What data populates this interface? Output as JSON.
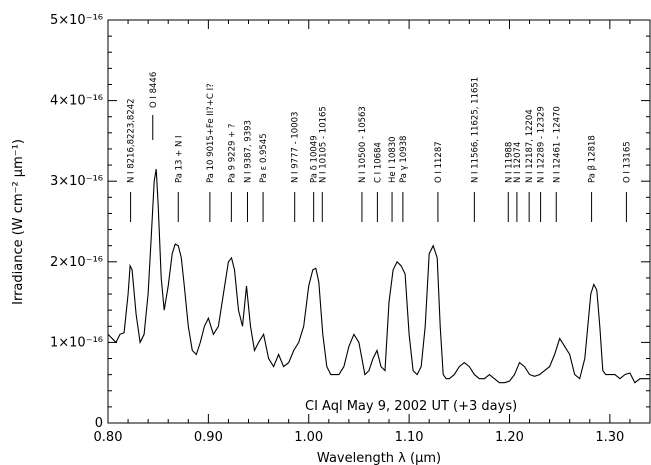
{
  "chart_data": {
    "type": "line",
    "xlabel": "Wavelength λ (μm)",
    "ylabel": "Irradiance (W cm⁻² μm⁻¹)",
    "xlim": [
      0.8,
      1.34
    ],
    "ylim": [
      0,
      5e-16
    ],
    "x_ticks": [
      "0.80",
      "0.90",
      "1.00",
      "1.10",
      "1.20",
      "1.30"
    ],
    "x_tick_values": [
      0.8,
      0.9,
      1.0,
      1.1,
      1.2,
      1.3
    ],
    "y_ticks": [
      "0",
      "1×10⁻¹⁶",
      "2×10⁻¹⁶",
      "3×10⁻¹⁶",
      "4×10⁻¹⁶",
      "5×10⁻¹⁶"
    ],
    "y_tick_values": [
      0,
      1e-16,
      2e-16,
      3e-16,
      4e-16,
      5e-16
    ],
    "annotation": "CI Aql May 9, 2002 UT (+3 days)",
    "grid": false,
    "line_ids": [
      {
        "x": 0.8225,
        "label": "N I 8216,8223,8242"
      },
      {
        "x": 0.8446,
        "label": "O I 8446"
      },
      {
        "x": 0.87,
        "label": "Pa 13 + N I"
      },
      {
        "x": 0.9015,
        "label": "Pa 10 9015+Fe II?+C I?"
      },
      {
        "x": 0.9229,
        "label": "Pa 9 9229 + ?"
      },
      {
        "x": 0.939,
        "label": "N I 9387, 9393"
      },
      {
        "x": 0.9545,
        "label": "Pa ε 0.9545"
      },
      {
        "x": 0.986,
        "label": "N I 9777 - 10003"
      },
      {
        "x": 1.0049,
        "label": "Pa δ 10049"
      },
      {
        "x": 1.0135,
        "label": "N I 10105 - 10165"
      },
      {
        "x": 1.053,
        "label": "N I 10500 - 10563"
      },
      {
        "x": 1.0684,
        "label": "C I 10684"
      },
      {
        "x": 1.083,
        "label": "He I 10830"
      },
      {
        "x": 1.0938,
        "label": "Pa γ 10938"
      },
      {
        "x": 1.1287,
        "label": "O I 11287"
      },
      {
        "x": 1.165,
        "label": "N I 11566, 11625, 11651"
      },
      {
        "x": 1.1988,
        "label": "N I 11988"
      },
      {
        "x": 1.2074,
        "label": "N I 12074"
      },
      {
        "x": 1.2196,
        "label": "N I 12187, 12204"
      },
      {
        "x": 1.231,
        "label": "N I 12289 - 12329"
      },
      {
        "x": 1.2466,
        "label": "N I 12461 - 12470"
      },
      {
        "x": 1.2818,
        "label": "Pa β 12818"
      },
      {
        "x": 1.3165,
        "label": "O I 13165"
      }
    ],
    "series": [
      {
        "x": [
          0.8,
          0.804,
          0.808,
          0.812,
          0.816,
          0.82,
          0.822,
          0.824,
          0.828,
          0.832,
          0.836,
          0.84,
          0.843,
          0.846,
          0.848,
          0.85,
          0.853,
          0.856,
          0.86,
          0.864,
          0.867,
          0.87,
          0.873,
          0.876,
          0.88,
          0.884,
          0.888,
          0.892,
          0.896,
          0.9,
          0.905,
          0.91,
          0.915,
          0.92,
          0.923,
          0.926,
          0.93,
          0.934,
          0.938,
          0.942,
          0.946,
          0.95,
          0.955,
          0.96,
          0.965,
          0.97,
          0.975,
          0.98,
          0.985,
          0.99,
          0.995,
          1.0,
          1.004,
          1.007,
          1.01,
          1.014,
          1.018,
          1.022,
          1.026,
          1.03,
          1.035,
          1.04,
          1.045,
          1.05,
          1.053,
          1.056,
          1.06,
          1.064,
          1.068,
          1.072,
          1.076,
          1.08,
          1.084,
          1.088,
          1.092,
          1.096,
          1.1,
          1.104,
          1.108,
          1.112,
          1.116,
          1.12,
          1.124,
          1.128,
          1.131,
          1.134,
          1.137,
          1.14,
          1.145,
          1.15,
          1.155,
          1.16,
          1.165,
          1.17,
          1.175,
          1.18,
          1.185,
          1.19,
          1.195,
          1.2,
          1.205,
          1.21,
          1.215,
          1.22,
          1.225,
          1.23,
          1.235,
          1.24,
          1.245,
          1.25,
          1.255,
          1.26,
          1.265,
          1.27,
          1.275,
          1.278,
          1.281,
          1.284,
          1.287,
          1.29,
          1.293,
          1.296,
          1.3,
          1.305,
          1.31,
          1.315,
          1.32,
          1.325,
          1.33,
          1.335,
          1.34
        ],
        "values": [
          1.1e-16,
          1.05e-16,
          1e-16,
          1.1e-16,
          1.12e-16,
          1.6e-16,
          1.95e-16,
          1.9e-16,
          1.35e-16,
          1e-16,
          1.1e-16,
          1.6e-16,
          2.3e-16,
          3e-16,
          3.15e-16,
          2.7e-16,
          1.8e-16,
          1.4e-16,
          1.7e-16,
          2.1e-16,
          2.22e-16,
          2.2e-16,
          2.05e-16,
          1.7e-16,
          1.2e-16,
          9e-17,
          8.5e-17,
          1e-16,
          1.2e-16,
          1.3e-16,
          1.1e-16,
          1.2e-16,
          1.6e-16,
          2e-16,
          2.05e-16,
          1.9e-16,
          1.4e-16,
          1.2e-16,
          1.7e-16,
          1.2e-16,
          9e-17,
          1e-16,
          1.1e-16,
          8e-17,
          7e-17,
          8.5e-17,
          7e-17,
          7.5e-17,
          9e-17,
          1e-16,
          1.2e-16,
          1.7e-16,
          1.9e-16,
          1.92e-16,
          1.75e-16,
          1.1e-16,
          7e-17,
          6e-17,
          6e-17,
          6e-17,
          7e-17,
          9.5e-17,
          1.1e-16,
          1e-16,
          8e-17,
          6e-17,
          6.5e-17,
          8e-17,
          9e-17,
          7e-17,
          6.5e-17,
          1.5e-16,
          1.9e-16,
          2e-16,
          1.95e-16,
          1.85e-16,
          1.1e-16,
          6.5e-17,
          6e-17,
          7e-17,
          1.2e-16,
          2.1e-16,
          2.2e-16,
          2.05e-16,
          1.2e-16,
          6e-17,
          5.5e-17,
          5.5e-17,
          6e-17,
          7e-17,
          7.5e-17,
          7e-17,
          6e-17,
          5.5e-17,
          5.5e-17,
          6e-17,
          5.5e-17,
          5e-17,
          5e-17,
          5.2e-17,
          6e-17,
          7.5e-17,
          7e-17,
          6e-17,
          5.8e-17,
          6e-17,
          6.5e-17,
          7e-17,
          8.5e-17,
          1.05e-16,
          9.5e-17,
          8.5e-17,
          6e-17,
          5.5e-17,
          8e-17,
          1.2e-16,
          1.6e-16,
          1.72e-16,
          1.65e-16,
          1.2e-16,
          6.5e-17,
          6e-17,
          6e-17,
          6e-17,
          5.5e-17,
          6e-17,
          6.2e-17,
          5e-17,
          5.5e-17,
          5.5e-17,
          5.5e-17
        ]
      }
    ]
  }
}
